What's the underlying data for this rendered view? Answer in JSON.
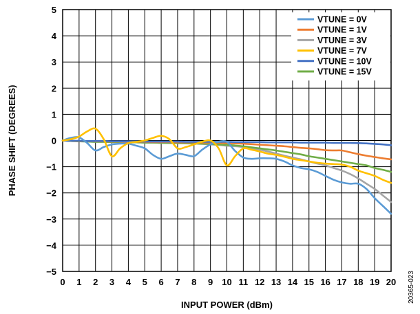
{
  "figure_id": "20365-023",
  "chart_data": {
    "type": "line",
    "xlabel": "INPUT POWER (dBm)",
    "ylabel": "PHASE SHIFT (DEGREES)",
    "xlim": [
      0,
      20
    ],
    "ylim": [
      -5,
      5
    ],
    "x_ticks": [
      "0",
      "1",
      "2",
      "3",
      "4",
      "5",
      "6",
      "7",
      "8",
      "9",
      "10",
      "11",
      "12",
      "13",
      "14",
      "15",
      "16",
      "17",
      "18",
      "19",
      "20"
    ],
    "y_ticks": [
      "5",
      "4",
      "3",
      "2",
      "1",
      "0",
      "−1",
      "−2",
      "−3",
      "−4",
      "−5"
    ],
    "grid": true,
    "legend_position": "top-right",
    "x": [
      0,
      0.5,
      1,
      1.5,
      2,
      2.5,
      3,
      3.5,
      4,
      4.5,
      5,
      5.5,
      6,
      6.5,
      7,
      7.5,
      8,
      8.5,
      9,
      9.5,
      10,
      10.5,
      11,
      11.5,
      12,
      12.5,
      13,
      13.5,
      14,
      14.5,
      15,
      15.5,
      16,
      16.5,
      17,
      17.5,
      18,
      18.5,
      19,
      19.5,
      20
    ],
    "series": [
      {
        "name": "VTUNE = 0V",
        "color": "#5b9bd5",
        "values": [
          0,
          0.1,
          0.12,
          -0.1,
          -0.38,
          -0.25,
          -0.15,
          -0.12,
          -0.12,
          -0.2,
          -0.3,
          -0.55,
          -0.7,
          -0.6,
          -0.5,
          -0.55,
          -0.6,
          -0.35,
          -0.15,
          -0.05,
          -0.05,
          -0.4,
          -0.65,
          -0.7,
          -0.68,
          -0.68,
          -0.7,
          -0.8,
          -0.95,
          -1.05,
          -1.1,
          -1.2,
          -1.35,
          -1.5,
          -1.6,
          -1.65,
          -1.65,
          -1.85,
          -2.2,
          -2.5,
          -2.8
        ]
      },
      {
        "name": "VTUNE = 1V",
        "color": "#ed7d31",
        "values": [
          0,
          -0.01,
          -0.02,
          -0.02,
          -0.03,
          -0.03,
          -0.04,
          -0.04,
          -0.05,
          -0.05,
          -0.05,
          -0.06,
          -0.06,
          -0.06,
          -0.07,
          -0.07,
          -0.07,
          -0.08,
          -0.08,
          -0.09,
          -0.1,
          -0.11,
          -0.12,
          -0.14,
          -0.16,
          -0.18,
          -0.2,
          -0.22,
          -0.25,
          -0.28,
          -0.3,
          -0.33,
          -0.37,
          -0.38,
          -0.38,
          -0.45,
          -0.52,
          -0.58,
          -0.63,
          -0.68,
          -0.72
        ]
      },
      {
        "name": "VTUNE = 3V",
        "color": "#a5a5a5",
        "values": [
          0,
          -0.02,
          -0.03,
          -0.04,
          -0.05,
          -0.05,
          -0.06,
          -0.06,
          -0.07,
          -0.07,
          -0.08,
          -0.08,
          -0.09,
          -0.1,
          -0.1,
          -0.11,
          -0.12,
          -0.13,
          -0.15,
          -0.17,
          -0.2,
          -0.22,
          -0.25,
          -0.3,
          -0.35,
          -0.42,
          -0.5,
          -0.58,
          -0.65,
          -0.72,
          -0.8,
          -0.88,
          -0.95,
          -1.05,
          -1.15,
          -1.28,
          -1.45,
          -1.65,
          -1.85,
          -2.1,
          -2.35
        ]
      },
      {
        "name": "VTUNE = 7V",
        "color": "#ffc000",
        "values": [
          0,
          0.05,
          0.15,
          0.35,
          0.45,
          0.05,
          -0.6,
          -0.3,
          -0.1,
          -0.05,
          0,
          0.1,
          0.18,
          0.05,
          -0.3,
          -0.25,
          -0.15,
          -0.05,
          0,
          -0.3,
          -0.95,
          -0.6,
          -0.3,
          -0.35,
          -0.42,
          -0.5,
          -0.55,
          -0.62,
          -0.7,
          -0.75,
          -0.8,
          -0.85,
          -0.88,
          -0.9,
          -0.92,
          -1.0,
          -1.15,
          -1.25,
          -1.35,
          -1.5,
          -1.62
        ]
      },
      {
        "name": "VTUNE = 10V",
        "color": "#4472c4",
        "values": [
          0,
          -0.01,
          -0.01,
          -0.02,
          -0.02,
          -0.02,
          -0.03,
          -0.03,
          -0.03,
          -0.03,
          -0.04,
          -0.04,
          -0.04,
          -0.04,
          -0.04,
          -0.05,
          -0.05,
          -0.05,
          -0.05,
          -0.05,
          -0.05,
          -0.06,
          -0.06,
          -0.06,
          -0.06,
          -0.07,
          -0.07,
          -0.07,
          -0.07,
          -0.08,
          -0.08,
          -0.08,
          -0.08,
          -0.09,
          -0.09,
          -0.09,
          -0.1,
          -0.11,
          -0.13,
          -0.15,
          -0.18
        ]
      },
      {
        "name": "VTUNE = 15V",
        "color": "#70ad47",
        "values": [
          0,
          -0.02,
          -0.03,
          -0.04,
          -0.05,
          -0.05,
          -0.06,
          -0.06,
          -0.07,
          -0.07,
          -0.08,
          -0.08,
          -0.09,
          -0.09,
          -0.1,
          -0.1,
          -0.11,
          -0.12,
          -0.13,
          -0.15,
          -0.17,
          -0.19,
          -0.22,
          -0.26,
          -0.3,
          -0.34,
          -0.38,
          -0.43,
          -0.48,
          -0.53,
          -0.6,
          -0.65,
          -0.7,
          -0.75,
          -0.8,
          -0.85,
          -0.9,
          -0.95,
          -1.05,
          -1.12,
          -1.2
        ]
      }
    ]
  }
}
